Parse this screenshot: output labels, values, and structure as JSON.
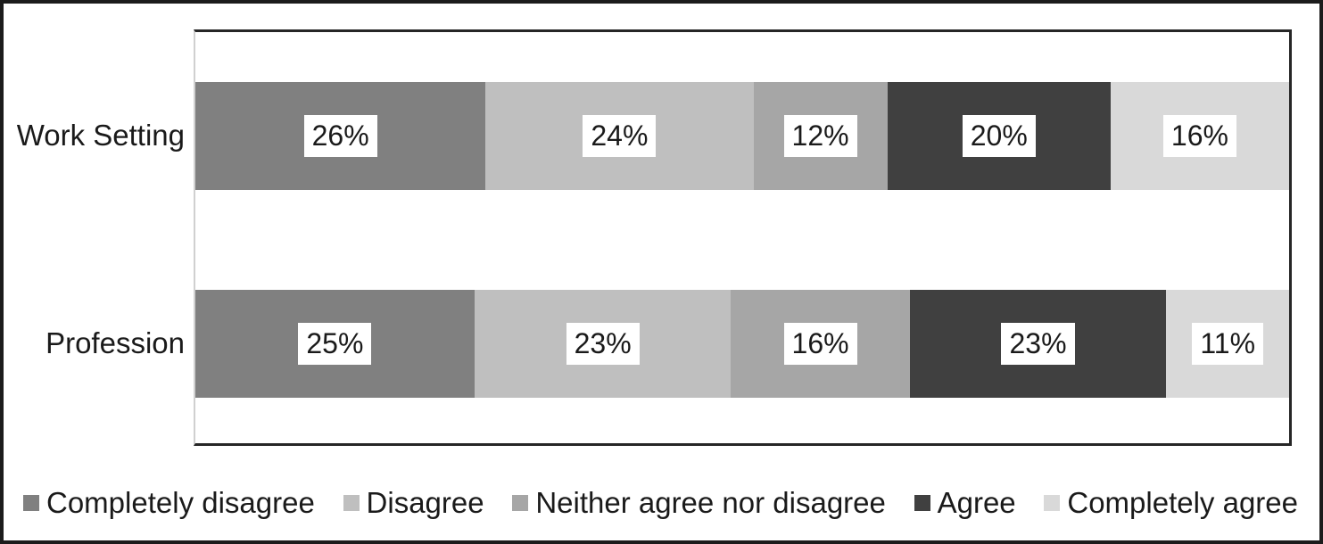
{
  "chart_data": {
    "type": "bar",
    "variant": "horizontal-stacked",
    "title": "",
    "categories": [
      "Work Setting",
      "Profession"
    ],
    "series": [
      {
        "name": "Completely disagree",
        "color": "#808080",
        "values": [
          26,
          25
        ]
      },
      {
        "name": "Disagree",
        "color": "#bfbfbf",
        "values": [
          24,
          23
        ]
      },
      {
        "name": "Neither agree nor disagree",
        "color": "#a6a6a6",
        "values": [
          12,
          16
        ]
      },
      {
        "name": "Agree",
        "color": "#404040",
        "values": [
          20,
          23
        ]
      },
      {
        "name": "Completely agree",
        "color": "#d9d9d9",
        "values": [
          16,
          11
        ]
      }
    ],
    "value_labels": [
      [
        "26%",
        "24%",
        "12%",
        "20%",
        "16%"
      ],
      [
        "25%",
        "23%",
        "16%",
        "23%",
        "11%"
      ]
    ],
    "legend_position": "bottom",
    "grid": false,
    "axes_visible": false,
    "colors": {
      "text": "#1a1a1a",
      "frame_border": "#1c1c1c",
      "plot_border": "#262626",
      "plot_left_line": "#d0d0d0",
      "value_label_background": "#ffffff",
      "background": "#ffffff"
    }
  }
}
